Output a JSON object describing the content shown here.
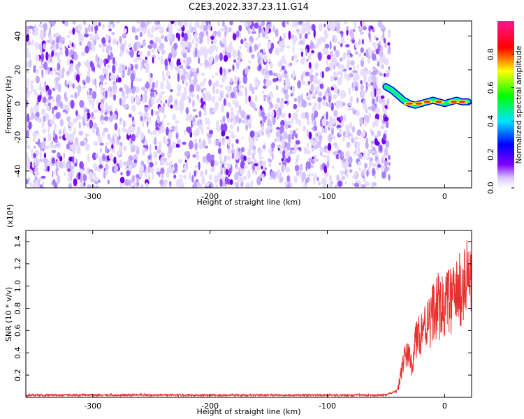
{
  "title": "C2E3.2022.337.23.11.G14",
  "chart_data": [
    {
      "type": "heatmap",
      "xlabel": "Height of straight line (km)",
      "ylabel": "Frequency (Hz)",
      "xlim": [
        -357,
        23
      ],
      "ylim": [
        -50,
        49
      ],
      "x_ticks": [
        -300,
        -200,
        -100,
        0
      ],
      "y_ticks": [
        -40,
        -20,
        0,
        20,
        40
      ],
      "x_tick_labels": [
        "-300",
        "-200",
        "-100",
        "0"
      ],
      "y_tick_labels": [
        "-40",
        "-20",
        "0",
        "20",
        "40"
      ],
      "noise_region_x": [
        -357,
        -47
      ],
      "signal_track": {
        "x": [
          -50,
          -45,
          -40,
          -35,
          -30,
          -25,
          -20,
          -15,
          -10,
          -5,
          0,
          5,
          10,
          15,
          20
        ],
        "freq": [
          10,
          8,
          5,
          2,
          0,
          -1,
          0,
          1,
          2,
          1,
          0,
          1,
          2,
          1,
          1
        ]
      },
      "colorbar": {
        "label": "Normalized spectral amplitude",
        "range": [
          0,
          1
        ],
        "ticks": [
          0.0,
          0.2,
          0.4,
          0.6,
          0.8
        ],
        "tick_labels": [
          "0.0",
          "0.2",
          "0.4",
          "0.6",
          "0.8"
        ],
        "colors": [
          "#ffffff",
          "#7f00ff",
          "#0000ff",
          "#00e5ff",
          "#00ff00",
          "#ffff00",
          "#ff0000",
          "#ff1493"
        ]
      }
    },
    {
      "type": "line",
      "xlabel": "Height of straight line (km)",
      "ylabel": "SNR (10 * v/v)",
      "scale_label": "(x10⁴)",
      "xlim": [
        -357,
        23
      ],
      "ylim": [
        0,
        1.5
      ],
      "x_ticks": [
        -300,
        -200,
        -100,
        0
      ],
      "y_ticks": [
        0.2,
        0.4,
        0.6,
        0.8,
        1.0,
        1.2,
        1.4
      ],
      "x_tick_labels": [
        "-300",
        "-200",
        "-100",
        "0"
      ],
      "y_tick_labels": [
        "0.2",
        "0.4",
        "0.6",
        "0.8",
        "1.0",
        "1.2",
        "1.4"
      ],
      "color": "#e8312f",
      "series": [
        {
          "x": [
            -357,
            -340,
            -320,
            -300,
            -280,
            -260,
            -240,
            -220,
            -200,
            -180,
            -160,
            -140,
            -120,
            -100,
            -80,
            -60,
            -50,
            -45,
            -42,
            -40,
            -38,
            -36,
            -34,
            -32,
            -30,
            -28,
            -26,
            -24,
            -22,
            -20,
            -18,
            -16,
            -14,
            -12,
            -10,
            -8,
            -6,
            -4,
            -2,
            0,
            2,
            4,
            6,
            8,
            10,
            12,
            14,
            16,
            18,
            20,
            23
          ],
          "y": [
            0.02,
            0.02,
            0.02,
            0.02,
            0.02,
            0.02,
            0.02,
            0.02,
            0.02,
            0.02,
            0.02,
            0.02,
            0.02,
            0.02,
            0.02,
            0.02,
            0.02,
            0.04,
            0.05,
            0.08,
            0.2,
            0.35,
            0.45,
            0.42,
            0.5,
            0.28,
            0.55,
            0.6,
            0.7,
            0.68,
            0.8,
            0.72,
            0.9,
            0.78,
            0.95,
            0.85,
            1.0,
            0.9,
            0.96,
            0.92,
            1.02,
            1.05,
            0.98,
            1.1,
            1.08,
            1.15,
            1.1,
            1.2,
            1.22,
            1.25,
            1.3
          ]
        }
      ]
    }
  ]
}
